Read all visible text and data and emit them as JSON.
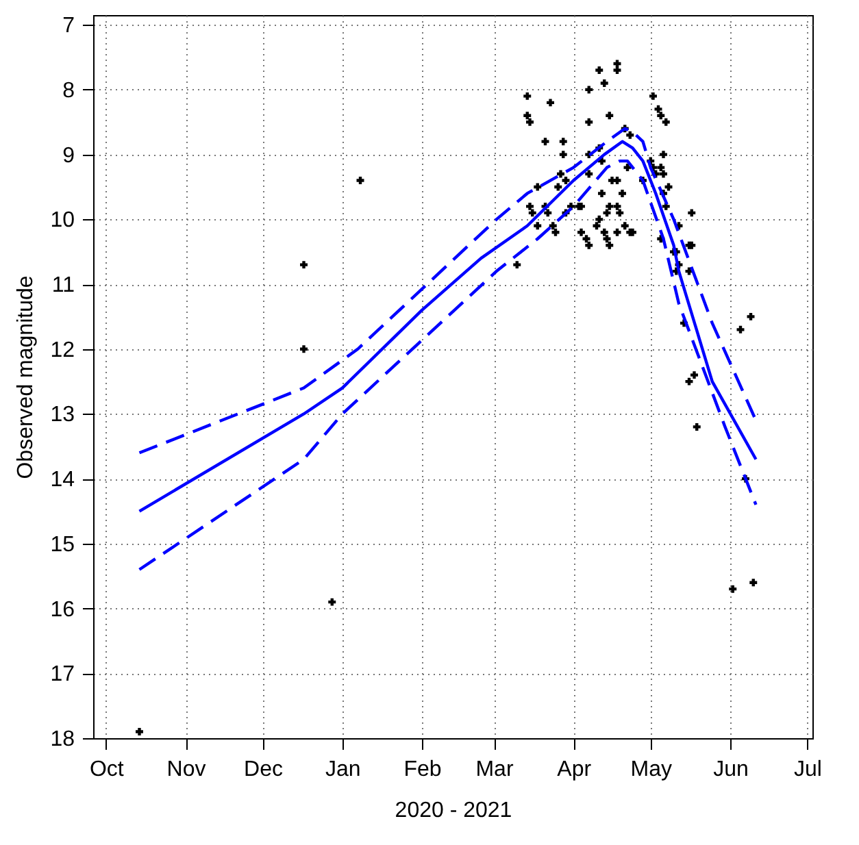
{
  "chart_data": {
    "type": "scatter",
    "xlabel": "2020 - 2021",
    "ylabel": "Observed magnitude",
    "xlim": [
      "2020-09-26",
      "2021-07-03"
    ],
    "ylim": [
      18,
      6.85
    ],
    "xticks": [
      {
        "value": "2020-10-01",
        "label": "Oct"
      },
      {
        "value": "2020-11-01",
        "label": "Nov"
      },
      {
        "value": "2020-12-01",
        "label": "Dec"
      },
      {
        "value": "2021-01-01",
        "label": "Jan"
      },
      {
        "value": "2021-02-01",
        "label": "Feb"
      },
      {
        "value": "2021-03-01",
        "label": "Mar"
      },
      {
        "value": "2021-04-01",
        "label": "Apr"
      },
      {
        "value": "2021-05-01",
        "label": "May"
      },
      {
        "value": "2021-06-01",
        "label": "Jun"
      },
      {
        "value": "2021-07-01",
        "label": "Jul"
      }
    ],
    "yticks": [
      7,
      8,
      9,
      10,
      11,
      12,
      13,
      14,
      15,
      16,
      17,
      18
    ],
    "grid": true,
    "series": [
      {
        "color": "#000000",
        "marker": "cross",
        "x": [
          "2020-10-14",
          "2020-12-17",
          "2020-12-17",
          "2020-12-28",
          "2021-01-08",
          "2021-03-10",
          "2021-03-14",
          "2021-03-14",
          "2021-03-15",
          "2021-03-23",
          "2021-03-21",
          "2021-03-28",
          "2021-03-28",
          "2021-03-27",
          "2021-03-26",
          "2021-03-29",
          "2021-03-18",
          "2021-03-15",
          "2021-03-21",
          "2021-03-16",
          "2021-03-18",
          "2021-03-22",
          "2021-03-24",
          "2021-03-25",
          "2021-03-29",
          "2021-03-31",
          "2021-04-03",
          "2021-04-04",
          "2021-04-04",
          "2021-04-06",
          "2021-04-07",
          "2021-04-07",
          "2021-04-07",
          "2021-04-11",
          "2021-04-12",
          "2021-04-07",
          "2021-04-07",
          "2021-04-11",
          "2021-04-13",
          "2021-04-18",
          "2021-04-18",
          "2021-04-15",
          "2021-04-16",
          "2021-04-18",
          "2021-04-12",
          "2021-04-15",
          "2021-04-18",
          "2021-04-19",
          "2021-04-20",
          "2021-04-14",
          "2021-04-11",
          "2021-04-10",
          "2021-04-13",
          "2021-04-18",
          "2021-04-21",
          "2021-04-23",
          "2021-04-24",
          "2021-04-14",
          "2021-04-15",
          "2021-04-21",
          "2021-04-23",
          "2021-04-22",
          "2021-04-28",
          "2021-05-02",
          "2021-05-04",
          "2021-05-05",
          "2021-05-07",
          "2021-05-06",
          "2021-05-01",
          "2021-05-02",
          "2021-05-03",
          "2021-05-06",
          "2021-05-05",
          "2021-05-08",
          "2021-05-06",
          "2021-05-07",
          "2021-05-17",
          "2021-05-12",
          "2021-05-05",
          "2021-05-11",
          "2021-05-16",
          "2021-05-17",
          "2021-05-12",
          "2021-05-16",
          "2021-05-14",
          "2021-05-10",
          "2021-05-11",
          "2021-06-09",
          "2021-06-05",
          "2021-05-18",
          "2021-05-16",
          "2021-05-19",
          "2021-06-07",
          "2021-06-02",
          "2021-06-10"
        ],
        "values": [
          17.9,
          10.7,
          12.0,
          15.9,
          9.4,
          10.7,
          8.1,
          8.4,
          8.5,
          8.2,
          8.8,
          8.8,
          9.0,
          9.3,
          9.5,
          9.4,
          9.5,
          9.8,
          9.8,
          9.9,
          10.1,
          9.9,
          10.1,
          10.2,
          9.9,
          9.8,
          9.8,
          9.8,
          10.2,
          10.3,
          10.4,
          9.3,
          9.0,
          8.9,
          9.1,
          8.0,
          8.5,
          7.7,
          7.9,
          7.6,
          7.7,
          8.4,
          9.4,
          9.4,
          9.6,
          9.8,
          9.8,
          9.9,
          9.6,
          9.9,
          10.0,
          10.1,
          10.2,
          10.2,
          10.1,
          10.2,
          10.2,
          10.3,
          10.4,
          8.6,
          8.7,
          9.2,
          9.4,
          8.1,
          8.3,
          8.4,
          8.5,
          9.0,
          9.1,
          9.2,
          9.3,
          9.3,
          9.2,
          9.5,
          9.6,
          9.8,
          9.9,
          10.1,
          10.3,
          10.5,
          10.4,
          10.4,
          10.7,
          10.8,
          11.6,
          10.5,
          10.8,
          11.5,
          11.7,
          12.4,
          12.5,
          13.2,
          14.0,
          15.7,
          15.6
        ]
      },
      {
        "type": "line",
        "color": "#0000ff",
        "line_style": "solid",
        "x": [
          "2020-10-14",
          "2020-12-17",
          "2021-01-01",
          "2021-02-01",
          "2021-02-24",
          "2021-03-14",
          "2021-04-01",
          "2021-04-13",
          "2021-04-20",
          "2021-04-24",
          "2021-04-28",
          "2021-05-03",
          "2021-05-10",
          "2021-05-12",
          "2021-05-25",
          "2021-06-11"
        ],
        "values": [
          14.5,
          13.0,
          12.6,
          11.4,
          10.6,
          10.1,
          9.4,
          9.0,
          8.8,
          8.9,
          9.1,
          9.6,
          10.4,
          10.8,
          12.5,
          13.7
        ]
      },
      {
        "type": "line",
        "color": "#0000ff",
        "line_style": "dashed",
        "x": [
          "2020-10-14",
          "2020-12-17",
          "2021-01-07",
          "2021-03-02",
          "2021-03-14",
          "2021-04-01",
          "2021-04-14",
          "2021-04-21",
          "2021-04-24",
          "2021-04-28",
          "2021-05-01",
          "2021-05-10",
          "2021-05-25",
          "2021-06-11"
        ],
        "values": [
          13.6,
          12.6,
          12.0,
          10.0,
          9.6,
          9.2,
          8.8,
          8.6,
          8.65,
          8.8,
          9.2,
          10.0,
          11.6,
          13.1
        ]
      },
      {
        "type": "line",
        "color": "#0000ff",
        "line_style": "dashed",
        "x": [
          "2020-10-14",
          "2020-12-17",
          "2021-01-01",
          "2021-03-02",
          "2021-03-18",
          "2021-04-01",
          "2021-04-14",
          "2021-04-19",
          "2021-04-22",
          "2021-04-28",
          "2021-05-06",
          "2021-05-12",
          "2021-05-30",
          "2021-06-11"
        ],
        "values": [
          15.4,
          13.7,
          13.0,
          10.8,
          10.3,
          9.8,
          9.2,
          9.1,
          9.1,
          9.4,
          10.3,
          11.3,
          13.2,
          14.4
        ]
      }
    ]
  }
}
